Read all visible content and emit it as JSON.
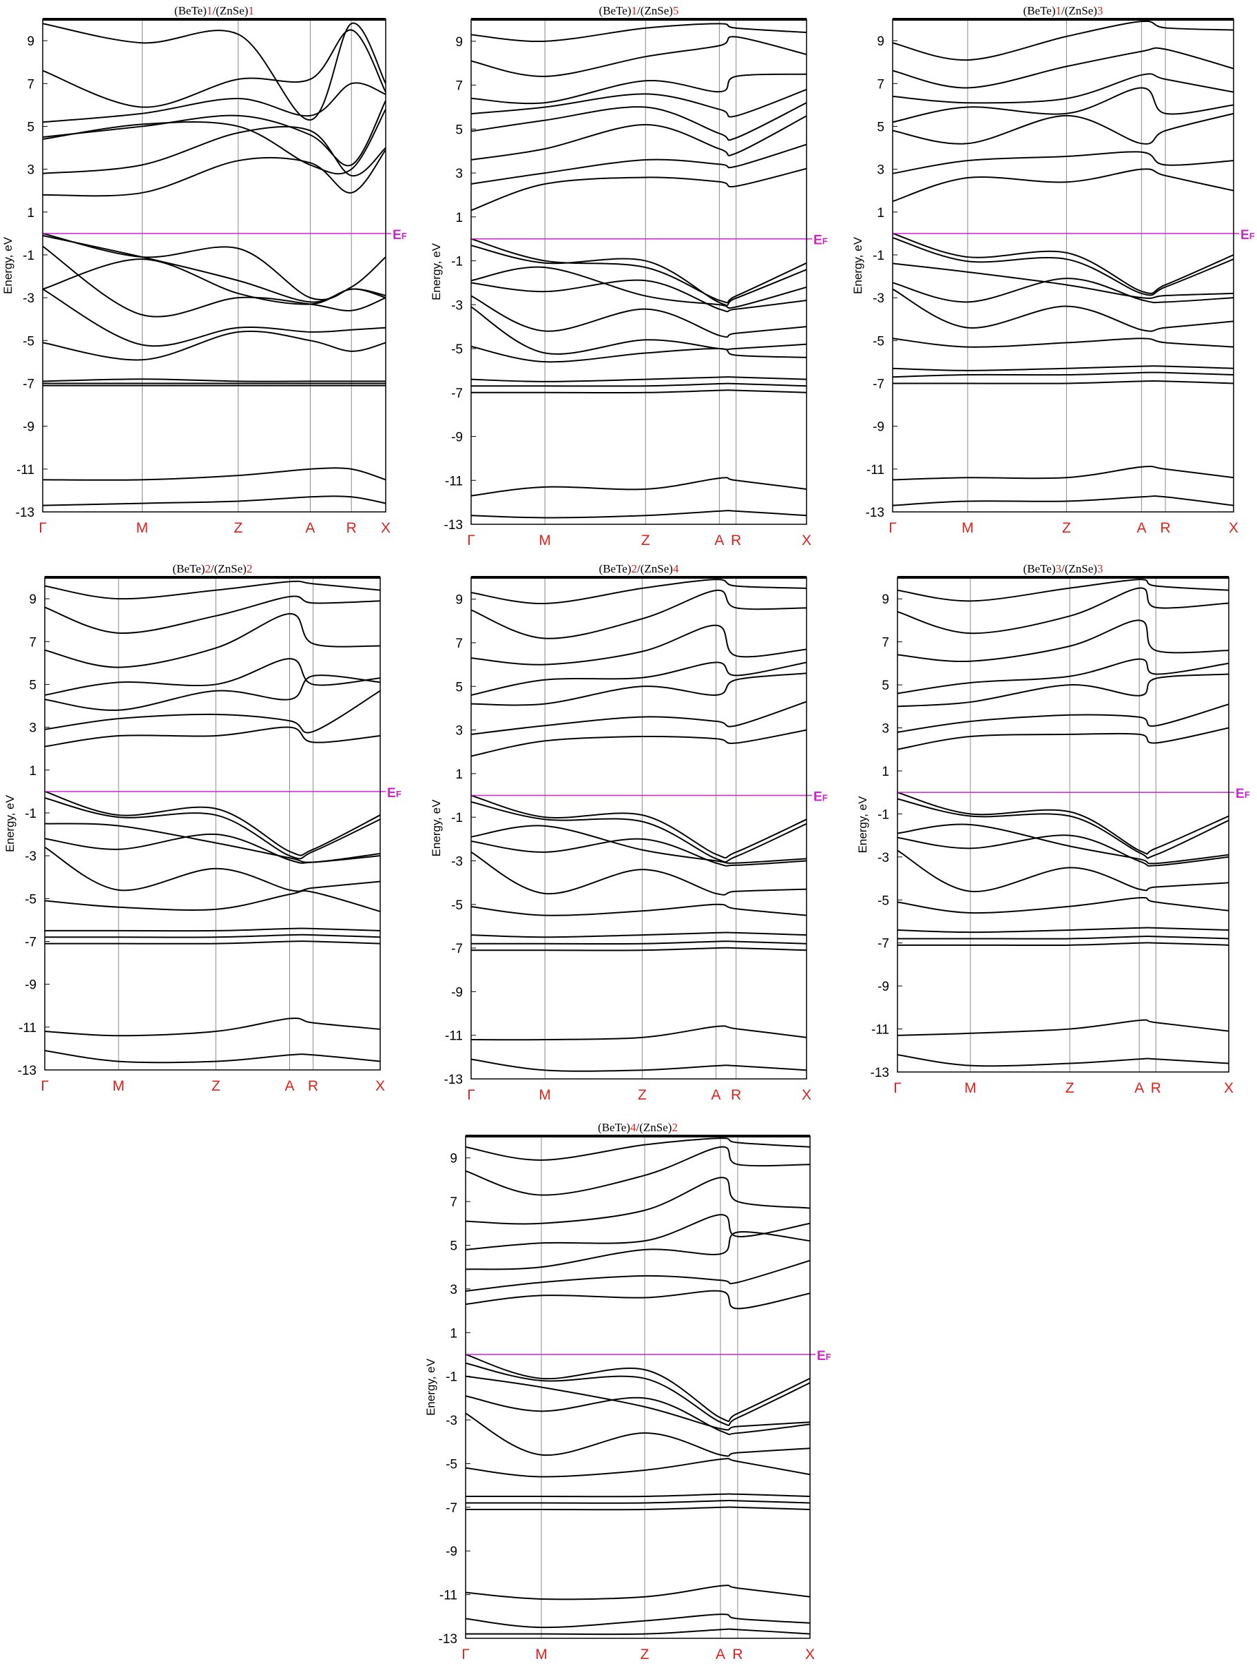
{
  "chart_data": [
    {
      "type": "line",
      "title_parts": [
        "(BeTe)",
        "1",
        "/(ZnSe)",
        "1"
      ],
      "ylabel": "Energy, eV",
      "ylim": [
        -13,
        10
      ],
      "yticks": [
        9,
        7,
        5,
        3,
        1,
        -1,
        -3,
        -5,
        -7,
        -9,
        -11,
        -13
      ],
      "ef_label": "EF",
      "ef": 0,
      "kpoints": [
        "Γ",
        "M",
        "Z",
        "A",
        "R",
        "X"
      ],
      "kpos": [
        0,
        0.29,
        0.57,
        0.78,
        0.9,
        1
      ],
      "bands": [
        [
          0,
          -1.1,
          -0.7,
          -3,
          -2.5,
          -1.1
        ],
        [
          -0.1,
          -1.1,
          -2.2,
          -3.2,
          -2.6,
          -2.9
        ],
        [
          -2.6,
          -1.2,
          -2.8,
          -3.3,
          -2.6,
          -3
        ],
        [
          -0.6,
          -3.8,
          -3,
          -3.3,
          -3.6,
          -3
        ],
        [
          -2.6,
          -5.2,
          -4.4,
          -4.6,
          -4.5,
          -4.4
        ],
        [
          -5.1,
          -5.9,
          -4.6,
          -5,
          -5.5,
          -5.1
        ],
        [
          -6.9,
          -6.8,
          -6.9,
          -6.9,
          -6.9,
          -6.9
        ],
        [
          -7,
          -7,
          -7,
          -7,
          -7,
          -7
        ],
        [
          -7.1,
          -7.1,
          -7.1,
          -7.1,
          -7.1,
          -7.1
        ],
        [
          -11.5,
          -11.5,
          -11.3,
          -11,
          -11,
          -11.5
        ],
        [
          -12.7,
          -12.6,
          -12.5,
          -12.3,
          -12.3,
          -12.6
        ],
        [
          1.8,
          1.9,
          3.4,
          3.3,
          1.9,
          3.9
        ],
        [
          2.8,
          3.2,
          4.7,
          4.8,
          2.7,
          4
        ],
        [
          4.4,
          5.1,
          5,
          3.2,
          3,
          5.8
        ],
        [
          4.5,
          5,
          5.5,
          4.6,
          3.2,
          6.2
        ],
        [
          5.2,
          5.6,
          6.3,
          5.5,
          7,
          6.5
        ],
        [
          7.6,
          5.9,
          7.2,
          7.2,
          9.5,
          6.6
        ],
        [
          9.8,
          8.9,
          9.3,
          5.3,
          9.8,
          7
        ]
      ]
    },
    {
      "type": "line",
      "title_parts": [
        "(BeTe)",
        "1",
        "/(ZnSe)",
        "5"
      ],
      "ylabel": "Energy, eV",
      "ylim": [
        -13,
        10
      ],
      "yticks": [
        9,
        7,
        5,
        3,
        1,
        -1,
        -3,
        -5,
        -7,
        -9,
        -11,
        -13
      ],
      "ef_label": "EF",
      "ef": 0,
      "kpoints": [
        "Γ",
        "M",
        "Z",
        "A",
        "R",
        "X"
      ],
      "kpos": [
        0,
        0.22,
        0.52,
        0.74,
        0.79,
        1
      ],
      "bands": [
        [
          0,
          -1,
          -1.3,
          -2.8,
          -2.6,
          -1.1
        ],
        [
          -0.3,
          -1.1,
          -1,
          -2.9,
          -2.7,
          -1.4
        ],
        [
          -1.9,
          -1.3,
          -2.6,
          -3,
          -3.1,
          -2.2
        ],
        [
          -2,
          -2.4,
          -1.9,
          -3.2,
          -3.2,
          -2.8
        ],
        [
          -2.6,
          -4.2,
          -3.2,
          -4.4,
          -4.3,
          -4
        ],
        [
          -3.1,
          -5.2,
          -4.6,
          -5,
          -5,
          -4.8
        ],
        [
          -4.9,
          -5.6,
          -5.2,
          -5,
          -5.3,
          -5.4
        ],
        [
          -6.4,
          -6.5,
          -6.4,
          -6.3,
          -6.3,
          -6.4
        ],
        [
          -6.7,
          -6.7,
          -6.7,
          -6.6,
          -6.6,
          -6.7
        ],
        [
          -7,
          -7,
          -7,
          -6.9,
          -6.9,
          -7
        ],
        [
          -11.7,
          -11.3,
          -11.4,
          -10.9,
          -11,
          -11.4
        ],
        [
          -12.6,
          -12.7,
          -12.6,
          -12.4,
          -12.4,
          -12.6
        ],
        [
          1.3,
          2.5,
          2.8,
          2.6,
          2.4,
          3.2
        ],
        [
          2.5,
          3,
          3.6,
          3.4,
          3.3,
          4.3
        ],
        [
          3.6,
          4.1,
          5.2,
          4.1,
          3.9,
          5.6
        ],
        [
          4.9,
          5.4,
          6,
          4.8,
          4.6,
          6.2
        ],
        [
          5.7,
          6,
          6.6,
          5.9,
          5.6,
          6.8
        ],
        [
          6.4,
          6.2,
          7.2,
          6.7,
          7.4,
          7.5
        ],
        [
          8.1,
          7.4,
          8.3,
          8.8,
          9.2,
          8.4
        ],
        [
          9.3,
          9,
          9.6,
          9.8,
          9.6,
          9.4
        ]
      ]
    },
    {
      "type": "line",
      "title_parts": [
        "(BeTe)",
        "1",
        "/(ZnSe)",
        "3"
      ],
      "ylabel": "Energy, eV",
      "ylim": [
        -13,
        10
      ],
      "yticks": [
        9,
        7,
        5,
        3,
        1,
        -1,
        -3,
        -5,
        -7,
        -9,
        -11,
        -13
      ],
      "ef_label": "EF",
      "ef": 0,
      "kpoints": [
        "Γ",
        "M",
        "Z",
        "A",
        "R",
        "X"
      ],
      "kpos": [
        0,
        0.22,
        0.51,
        0.73,
        0.8,
        1
      ],
      "bands": [
        [
          0,
          -1.1,
          -0.9,
          -2.7,
          -2.4,
          -1
        ],
        [
          -0.2,
          -1.3,
          -1.2,
          -2.8,
          -2.5,
          -1.2
        ],
        [
          -1.4,
          -1.8,
          -2.4,
          -3,
          -2.9,
          -2.8
        ],
        [
          -2.3,
          -3.2,
          -2.1,
          -3.1,
          -3.2,
          -3
        ],
        [
          -2.6,
          -4.4,
          -3.4,
          -4.5,
          -4.4,
          -4.1
        ],
        [
          -4.9,
          -5.3,
          -5.1,
          -4.9,
          -5.1,
          -5.3
        ],
        [
          -6.3,
          -6.4,
          -6.3,
          -6.2,
          -6.2,
          -6.3
        ],
        [
          -6.7,
          -6.6,
          -6.6,
          -6.5,
          -6.5,
          -6.6
        ],
        [
          -7,
          -7,
          -7,
          -6.9,
          -6.9,
          -7
        ],
        [
          -11.5,
          -11.4,
          -11.4,
          -10.9,
          -11,
          -11.4
        ],
        [
          -12.7,
          -12.5,
          -12.5,
          -12.3,
          -12.3,
          -12.7
        ],
        [
          1.5,
          2.6,
          2.4,
          3,
          2.7,
          2
        ],
        [
          2.8,
          3.4,
          3.6,
          3.8,
          3.2,
          3.4
        ],
        [
          4.8,
          4.2,
          5.5,
          4.2,
          4.8,
          5.6
        ],
        [
          5.2,
          5.9,
          5.6,
          6.8,
          5.6,
          6
        ],
        [
          6.4,
          6.1,
          6.3,
          7.4,
          7.2,
          6.6
        ],
        [
          7.6,
          6.8,
          7.8,
          8.5,
          8.6,
          7.7
        ],
        [
          8.9,
          8.1,
          9.2,
          9.9,
          9.6,
          9.5
        ]
      ]
    },
    {
      "type": "line",
      "title_parts": [
        "(BeTe)",
        "2",
        "/(ZnSe)",
        "2"
      ],
      "ylabel": "Energy, eV",
      "ylim": [
        -13,
        10
      ],
      "yticks": [
        9,
        7,
        5,
        3,
        1,
        -1,
        -3,
        -5,
        -7,
        -9,
        -11,
        -13
      ],
      "ef_label": "EF",
      "ef": 0,
      "kpoints": [
        "Γ",
        "M",
        "Z",
        "A",
        "R",
        "X"
      ],
      "kpos": [
        0,
        0.22,
        0.51,
        0.73,
        0.8,
        1
      ],
      "bands": [
        [
          0,
          -1.1,
          -0.8,
          -2.8,
          -2.7,
          -1.1
        ],
        [
          -0.3,
          -1.2,
          -1.1,
          -3,
          -2.8,
          -1.3
        ],
        [
          -1.5,
          -1.6,
          -2.4,
          -3.1,
          -3.3,
          -2.9
        ],
        [
          -2.2,
          -2.7,
          -2,
          -3.2,
          -3.3,
          -3
        ],
        [
          -2.6,
          -4.6,
          -3.6,
          -4.6,
          -4.5,
          -4.2
        ],
        [
          -5.1,
          -5.4,
          -5.5,
          -4.8,
          -4.7,
          -5.6
        ],
        [
          -6.5,
          -6.5,
          -6.5,
          -6.4,
          -6.4,
          -6.5
        ],
        [
          -6.8,
          -6.8,
          -6.8,
          -6.7,
          -6.7,
          -6.8
        ],
        [
          -7.1,
          -7.1,
          -7.1,
          -7,
          -7,
          -7.1
        ],
        [
          -11.2,
          -11.4,
          -11.2,
          -10.6,
          -10.8,
          -11.1
        ],
        [
          -12.1,
          -12.6,
          -12.6,
          -12.3,
          -12.3,
          -12.6
        ],
        [
          2.1,
          2.6,
          2.6,
          3,
          2.3,
          2.6
        ],
        [
          2.9,
          3.4,
          3.6,
          3.3,
          2.8,
          4.7
        ],
        [
          4.3,
          3.8,
          4.7,
          4.3,
          5.4,
          5.1
        ],
        [
          4.5,
          5.1,
          5,
          6.2,
          5,
          5.3
        ],
        [
          6.6,
          5.8,
          6.7,
          8.3,
          6.9,
          6.8
        ],
        [
          8.6,
          7.4,
          8.2,
          9.1,
          8.8,
          8.9
        ],
        [
          9.6,
          9,
          9.4,
          9.8,
          9.7,
          9.4
        ]
      ]
    },
    {
      "type": "line",
      "title_parts": [
        "(BeTe)",
        "2",
        "/(ZnSe)",
        "4"
      ],
      "ylabel": "Energy, eV",
      "ylim": [
        -13,
        10
      ],
      "yticks": [
        9,
        7,
        5,
        3,
        1,
        -1,
        -3,
        -5,
        -7,
        -9,
        -11,
        -13
      ],
      "ef_label": "EF",
      "ef": 0,
      "kpoints": [
        "Γ",
        "M",
        "Z",
        "A",
        "R",
        "X"
      ],
      "kpos": [
        0,
        0.22,
        0.51,
        0.73,
        0.79,
        1
      ],
      "bands": [
        [
          0,
          -1,
          -0.9,
          -2.7,
          -2.6,
          -1.1
        ],
        [
          -0.3,
          -1.1,
          -1.2,
          -2.9,
          -2.8,
          -1.3
        ],
        [
          -1.9,
          -1.4,
          -2.5,
          -3,
          -3.1,
          -2.9
        ],
        [
          -2.1,
          -2.6,
          -2,
          -3.1,
          -3.2,
          -3
        ],
        [
          -2.6,
          -4.5,
          -3.4,
          -4.5,
          -4.4,
          -4.3
        ],
        [
          -5.1,
          -5.5,
          -5.3,
          -5,
          -5.2,
          -5.5
        ],
        [
          -6.4,
          -6.5,
          -6.4,
          -6.3,
          -6.3,
          -6.4
        ],
        [
          -6.8,
          -6.8,
          -6.8,
          -6.7,
          -6.7,
          -6.8
        ],
        [
          -7.1,
          -7.1,
          -7.1,
          -7,
          -7,
          -7.1
        ],
        [
          -11.2,
          -11.2,
          -11.1,
          -10.6,
          -10.7,
          -11.1
        ],
        [
          -12.1,
          -12.6,
          -12.6,
          -12.4,
          -12.4,
          -12.6
        ],
        [
          1.8,
          2.5,
          2.7,
          2.6,
          2.4,
          3
        ],
        [
          2.8,
          3.2,
          3.6,
          3.4,
          3.2,
          4.3
        ],
        [
          4.2,
          4.2,
          5,
          4.6,
          5.3,
          5.6
        ],
        [
          4.6,
          5.3,
          5.4,
          6.1,
          5.5,
          6.1
        ],
        [
          6.3,
          6,
          6.6,
          7.8,
          6.4,
          6.7
        ],
        [
          8.5,
          7.2,
          8.1,
          9.4,
          8.6,
          8.6
        ],
        [
          9.3,
          8.8,
          9.5,
          9.9,
          9.6,
          9.5
        ]
      ]
    },
    {
      "type": "line",
      "title_parts": [
        "(BeTe)",
        "3",
        "/(ZnSe)",
        "3"
      ],
      "ylabel": "Energy, eV",
      "ylim": [
        -13,
        10
      ],
      "yticks": [
        9,
        7,
        5,
        3,
        1,
        -1,
        -3,
        -5,
        -7,
        -9,
        -11,
        -13
      ],
      "ef_label": "EF",
      "ef": 0,
      "kpoints": [
        "Γ",
        "M",
        "Z",
        "A",
        "R",
        "X"
      ],
      "kpos": [
        0,
        0.22,
        0.52,
        0.73,
        0.78,
        1
      ],
      "bands": [
        [
          0,
          -1,
          -0.9,
          -2.7,
          -2.6,
          -1.1
        ],
        [
          -0.3,
          -1.1,
          -1.1,
          -2.8,
          -2.9,
          -1.3
        ],
        [
          -1.9,
          -1.5,
          -2.5,
          -3.1,
          -3.3,
          -2.9
        ],
        [
          -2.1,
          -2.6,
          -2,
          -3.2,
          -3.4,
          -3
        ],
        [
          -2.7,
          -4.6,
          -3.5,
          -4.5,
          -4.4,
          -4.2
        ],
        [
          -5.1,
          -5.6,
          -5.3,
          -4.9,
          -5.1,
          -5.5
        ],
        [
          -6.4,
          -6.5,
          -6.4,
          -6.3,
          -6.3,
          -6.4
        ],
        [
          -6.8,
          -6.8,
          -6.8,
          -6.7,
          -6.7,
          -6.8
        ],
        [
          -7.1,
          -7.1,
          -7.1,
          -7,
          -7,
          -7.1
        ],
        [
          -11.3,
          -11.2,
          -11,
          -10.6,
          -10.7,
          -11.1
        ],
        [
          -12.2,
          -12.7,
          -12.6,
          -12.4,
          -12.4,
          -12.6
        ],
        [
          2,
          2.6,
          2.7,
          2.7,
          2.3,
          3
        ],
        [
          2.8,
          3.3,
          3.6,
          3.5,
          3.1,
          4.1
        ],
        [
          4,
          4.2,
          5,
          4.5,
          5.3,
          5.5
        ],
        [
          4.6,
          5.1,
          5.4,
          6.2,
          5.5,
          6
        ],
        [
          6.4,
          6.1,
          6.8,
          8,
          6.6,
          6.6
        ],
        [
          8.4,
          7.4,
          8.2,
          9.5,
          8.6,
          8.8
        ],
        [
          9.4,
          8.9,
          9.5,
          9.9,
          9.6,
          9.4
        ]
      ]
    },
    {
      "type": "line",
      "title_parts": [
        "(BeTe)",
        "4",
        "/(ZnSe)",
        "2"
      ],
      "ylabel": "Energy, eV",
      "ylim": [
        -13,
        10
      ],
      "yticks": [
        9,
        7,
        5,
        3,
        1,
        -1,
        -3,
        -5,
        -7,
        -9,
        -11,
        -13
      ],
      "ef_label": "EF",
      "ef": 0,
      "kpoints": [
        "Γ",
        "M",
        "Z",
        "A",
        "R",
        "X"
      ],
      "kpos": [
        0,
        0.22,
        0.52,
        0.74,
        0.79,
        1
      ],
      "bands": [
        [
          0,
          -1.1,
          -0.7,
          -2.9,
          -2.7,
          -1.1
        ],
        [
          -0.4,
          -1.2,
          -1.1,
          -3.1,
          -2.9,
          -1.3
        ],
        [
          -1,
          -1.5,
          -2.4,
          -3.4,
          -3.3,
          -3.1
        ],
        [
          -1.9,
          -2.6,
          -2,
          -3.5,
          -3.6,
          -3.2
        ],
        [
          -2.7,
          -4.6,
          -3.6,
          -4.6,
          -4.5,
          -4.3
        ],
        [
          -5.2,
          -5.6,
          -5.3,
          -4.8,
          -4.9,
          -5.5
        ],
        [
          -6.5,
          -6.5,
          -6.5,
          -6.4,
          -6.4,
          -6.5
        ],
        [
          -6.8,
          -6.8,
          -6.8,
          -6.7,
          -6.7,
          -6.8
        ],
        [
          -7.1,
          -7.1,
          -7.1,
          -7,
          -7,
          -7.1
        ],
        [
          -10.9,
          -11.2,
          -11.1,
          -10.6,
          -10.7,
          -11.1
        ],
        [
          -12.1,
          -12.5,
          -12.2,
          -11.9,
          -12.1,
          -12.3
        ],
        [
          -12.8,
          -12.8,
          -12.8,
          -12.6,
          -12.6,
          -12.8
        ],
        [
          2.3,
          2.7,
          2.6,
          2.9,
          2.1,
          2.8
        ],
        [
          2.9,
          3.3,
          3.6,
          3.4,
          3.3,
          4.3
        ],
        [
          3.9,
          4,
          4.8,
          4.6,
          5.6,
          5.2
        ],
        [
          4.8,
          5.1,
          5.2,
          6.4,
          5.4,
          6
        ],
        [
          6.1,
          6,
          6.6,
          8.1,
          7,
          6.7
        ],
        [
          8.4,
          7.3,
          8.2,
          9.5,
          8.7,
          8.7
        ],
        [
          9.5,
          8.9,
          9.6,
          9.9,
          9.7,
          9.5
        ]
      ]
    }
  ]
}
